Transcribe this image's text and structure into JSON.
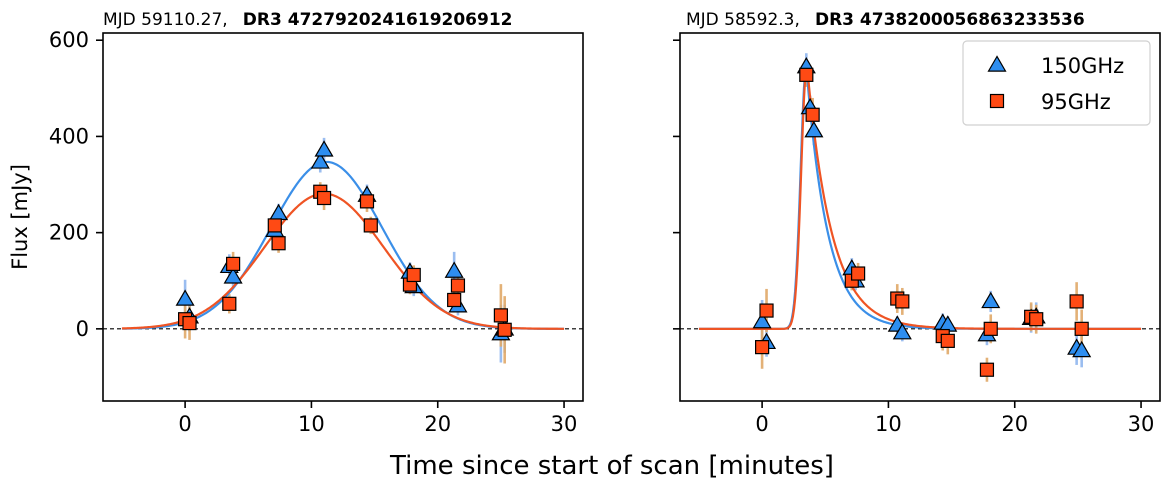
{
  "figure": {
    "shared_xlabel": "Time since start of scan [minutes]",
    "ylabel": "Flux [mJy]"
  },
  "colors": {
    "band_150": "#2e8ef0",
    "band_95": "#ff4a14",
    "err_150": "#8fb6ee",
    "err_95": "#e0a868",
    "fit_150": "#3b8fe8",
    "fit_95": "#ef5424"
  },
  "chart_data": [
    {
      "type": "scatter",
      "title_prefix": "MJD 59110.27,",
      "title_bold": "DR3 4727920241619206912",
      "xlim": [
        -6.5,
        31.5
      ],
      "ylim": [
        -150,
        615
      ],
      "xticks": [
        0,
        10,
        20,
        30
      ],
      "yticks": [
        0,
        200,
        400,
        600
      ],
      "ytick_labels": [
        "0",
        "200",
        "400",
        "600"
      ],
      "zero_line": true,
      "series": [
        {
          "name": "150GHz",
          "marker": "triangle",
          "points": [
            {
              "x": 0.0,
              "y": 62,
              "err": 40
            },
            {
              "x": 0.35,
              "y": 25,
              "err": 30
            },
            {
              "x": 3.5,
              "y": 130,
              "err": 25
            },
            {
              "x": 3.8,
              "y": 108,
              "err": 22
            },
            {
              "x": 7.1,
              "y": 205,
              "err": 20
            },
            {
              "x": 7.4,
              "y": 240,
              "err": 20
            },
            {
              "x": 10.7,
              "y": 347,
              "err": 22
            },
            {
              "x": 11.0,
              "y": 372,
              "err": 25
            },
            {
              "x": 14.4,
              "y": 278,
              "err": 22
            },
            {
              "x": 17.8,
              "y": 118,
              "err": 20
            },
            {
              "x": 18.1,
              "y": 88,
              "err": 20
            },
            {
              "x": 21.3,
              "y": 120,
              "err": 40
            },
            {
              "x": 21.6,
              "y": 48,
              "err": 20
            },
            {
              "x": 25.0,
              "y": -10,
              "err": 60
            },
            {
              "x": 25.3,
              "y": 0,
              "err": 50
            }
          ],
          "fit": {
            "model": "gaussian",
            "amplitude": 347,
            "center": 11.2,
            "sigma": 4.4,
            "range": [
              -5,
              30
            ]
          }
        },
        {
          "name": "95GHz",
          "marker": "square",
          "points": [
            {
              "x": 0.0,
              "y": 20,
              "err": 40
            },
            {
              "x": 0.35,
              "y": 12,
              "err": 35
            },
            {
              "x": 3.5,
              "y": 52,
              "err": 20
            },
            {
              "x": 3.8,
              "y": 135,
              "err": 25
            },
            {
              "x": 7.1,
              "y": 215,
              "err": 20
            },
            {
              "x": 7.4,
              "y": 178,
              "err": 20
            },
            {
              "x": 10.7,
              "y": 285,
              "err": 20
            },
            {
              "x": 11.0,
              "y": 272,
              "err": 25
            },
            {
              "x": 14.4,
              "y": 265,
              "err": 22
            },
            {
              "x": 14.7,
              "y": 215,
              "err": 18
            },
            {
              "x": 17.8,
              "y": 92,
              "err": 20
            },
            {
              "x": 18.1,
              "y": 112,
              "err": 20
            },
            {
              "x": 21.3,
              "y": 60,
              "err": 25
            },
            {
              "x": 21.6,
              "y": 90,
              "err": 20
            },
            {
              "x": 25.0,
              "y": 28,
              "err": 65
            },
            {
              "x": 25.3,
              "y": -2,
              "err": 70
            }
          ],
          "fit": {
            "model": "gaussian",
            "amplitude": 281,
            "center": 11.0,
            "sigma": 4.7,
            "range": [
              -5,
              30
            ]
          }
        }
      ]
    },
    {
      "type": "scatter",
      "title_prefix": "MJD 58592.3,",
      "title_bold": "DR3 4738200056863233536",
      "xlim": [
        -6.5,
        31.5
      ],
      "ylim": [
        -150,
        615
      ],
      "xticks": [
        0,
        10,
        20,
        30
      ],
      "yticks": [
        0,
        200,
        400,
        600
      ],
      "ytick_labels": [
        "",
        "",
        "",
        ""
      ],
      "zero_line": true,
      "legend": {
        "position": "top-right",
        "entries": [
          "150GHz",
          "95GHz"
        ]
      },
      "series": [
        {
          "name": "150GHz",
          "marker": "triangle",
          "points": [
            {
              "x": 0.0,
              "y": 15,
              "err": 45
            },
            {
              "x": 0.35,
              "y": -28,
              "err": 30
            },
            {
              "x": 3.5,
              "y": 545,
              "err": 28
            },
            {
              "x": 3.8,
              "y": 460,
              "err": 25
            },
            {
              "x": 4.1,
              "y": 412,
              "err": 30
            },
            {
              "x": 7.1,
              "y": 125,
              "err": 22
            },
            {
              "x": 7.4,
              "y": 100,
              "err": 20
            },
            {
              "x": 10.7,
              "y": 8,
              "err": 18
            },
            {
              "x": 11.1,
              "y": -8,
              "err": 18
            },
            {
              "x": 14.3,
              "y": 12,
              "err": 20
            },
            {
              "x": 14.7,
              "y": 8,
              "err": 18
            },
            {
              "x": 17.8,
              "y": -12,
              "err": 22
            },
            {
              "x": 18.1,
              "y": 57,
              "err": 22
            },
            {
              "x": 21.3,
              "y": 22,
              "err": 30
            },
            {
              "x": 21.7,
              "y": 25,
              "err": 30
            },
            {
              "x": 24.9,
              "y": -40,
              "err": 35
            },
            {
              "x": 25.3,
              "y": -45,
              "err": 35
            }
          ],
          "fit": {
            "model": "fred",
            "amplitude": 545,
            "t_peak": 3.5,
            "rise": 0.45,
            "decay": 1.7,
            "range": [
              -5,
              30
            ]
          }
        },
        {
          "name": "95GHz",
          "marker": "square",
          "points": [
            {
              "x": 0.0,
              "y": -38,
              "err": 45
            },
            {
              "x": 0.35,
              "y": 38,
              "err": 45
            },
            {
              "x": 3.5,
              "y": 528,
              "err": 25
            },
            {
              "x": 4.0,
              "y": 445,
              "err": 35
            },
            {
              "x": 7.1,
              "y": 100,
              "err": 20
            },
            {
              "x": 7.6,
              "y": 115,
              "err": 22
            },
            {
              "x": 10.7,
              "y": 63,
              "err": 30
            },
            {
              "x": 11.1,
              "y": 57,
              "err": 28
            },
            {
              "x": 14.3,
              "y": -15,
              "err": 30
            },
            {
              "x": 14.7,
              "y": -25,
              "err": 28
            },
            {
              "x": 17.8,
              "y": -85,
              "err": 25
            },
            {
              "x": 18.1,
              "y": 0,
              "err": 30
            },
            {
              "x": 21.3,
              "y": 25,
              "err": 30
            },
            {
              "x": 21.7,
              "y": 20,
              "err": 30
            },
            {
              "x": 24.9,
              "y": 57,
              "err": 40
            },
            {
              "x": 25.3,
              "y": 0,
              "err": 40
            }
          ],
          "fit": {
            "model": "fred",
            "amplitude": 548,
            "t_peak": 3.55,
            "rise": 0.45,
            "decay": 1.95,
            "range": [
              -5,
              30
            ]
          }
        }
      ]
    }
  ]
}
